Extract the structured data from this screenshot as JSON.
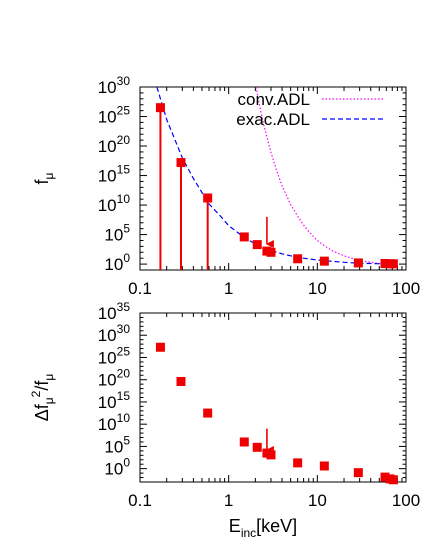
{
  "chart_data": [
    {
      "type": "scatter",
      "panel": "top",
      "ylabel_main": "f",
      "ylabel_sub": "μ",
      "xscale": "log",
      "yscale": "log",
      "xlim": [
        0.1,
        100
      ],
      "ylim_exp": [
        -1,
        30
      ],
      "x_ticks": [
        "0.1",
        "1",
        "10",
        "100"
      ],
      "x_tick_values": [
        0.1,
        1,
        10,
        100
      ],
      "y_tick_base": "10",
      "y_tick_exponents": [
        "0",
        "5",
        "10",
        "15",
        "20",
        "25",
        "30"
      ],
      "legend_position": "top-right",
      "series": [
        {
          "name": "conv.ADL",
          "style": "dotted",
          "color": "#ff00ff",
          "curve": "exponential",
          "x": [
            2.04,
            2.2,
            2.5,
            3,
            3.5,
            4,
            5,
            6,
            7,
            8,
            10,
            12,
            15,
            20,
            30,
            50,
            80
          ],
          "log10_y": [
            30,
            27.3,
            23.4,
            18.9,
            15.7,
            13.3,
            10.1,
            8.1,
            6.6,
            5.5,
            4.0,
            3.1,
            2.2,
            1.4,
            0.6,
            0.1,
            -0.1
          ]
        },
        {
          "name": "exac.ADL",
          "style": "dashed",
          "color": "#0000ff",
          "curve": "exponential",
          "x": [
            0.155,
            0.2,
            0.3,
            0.4,
            0.6,
            0.8,
            1.0,
            1.5,
            2,
            3,
            4,
            5,
            7,
            10,
            15,
            20,
            30,
            50,
            80
          ],
          "log10_y": [
            30,
            24.5,
            18.0,
            14.5,
            10.2,
            8.2,
            6.5,
            4.5,
            3.4,
            2.3,
            1.75,
            1.4,
            1.0,
            0.7,
            0.45,
            0.3,
            0.15,
            0.05,
            0.0
          ]
        },
        {
          "name": "",
          "style": "markers",
          "color": "#ee0000",
          "x": [
            0.17,
            0.29,
            0.58,
            1.5,
            2.1,
            2.7,
            3.0,
            6.0,
            12.0,
            29.0,
            58.0,
            66.0,
            72.0
          ],
          "log10_y": [
            26.5,
            17.2,
            11.2,
            4.6,
            3.3,
            2.2,
            2.0,
            0.9,
            0.5,
            0.2,
            0.1,
            0.05,
            0.05
          ],
          "stems_at_x": [
            0.17,
            0.29,
            0.58
          ]
        }
      ],
      "annotation": {
        "type": "arrow",
        "x": 2.7,
        "log10_y_from": 8.0,
        "log10_y_to": 3.4,
        "color": "#ee0000"
      }
    },
    {
      "type": "scatter",
      "panel": "bottom",
      "ylabel_main": "Δf",
      "ylabel_sub": "μ",
      "ylabel_sup": "2",
      "ylabel_tail": "/f",
      "ylabel_tail_sub": "μ",
      "xlabel_main": "E",
      "xlabel_sub": "inc",
      "xlabel_unit": "[keV]",
      "xscale": "log",
      "yscale": "log",
      "xlim": [
        0.1,
        100
      ],
      "ylim_exp": [
        -3,
        35
      ],
      "x_ticks": [
        "0.1",
        "1",
        "10",
        "100"
      ],
      "x_tick_values": [
        0.1,
        1,
        10,
        100
      ],
      "y_tick_base": "10",
      "y_tick_exponents": [
        "0",
        "5",
        "10",
        "15",
        "20",
        "25",
        "30",
        "35"
      ],
      "series": [
        {
          "name": "",
          "style": "markers",
          "color": "#ee0000",
          "x": [
            0.17,
            0.29,
            0.58,
            1.5,
            2.1,
            2.7,
            3.0,
            6.0,
            12.0,
            29.0,
            58.0,
            66.0,
            72.0
          ],
          "log10_y": [
            27.3,
            19.6,
            12.5,
            6.0,
            4.8,
            3.5,
            3.1,
            1.3,
            0.6,
            -0.9,
            -1.9,
            -2.3,
            -2.5
          ]
        }
      ],
      "annotation": {
        "type": "arrow",
        "x": 2.7,
        "log10_y_from": 9.0,
        "log10_y_to": 4.2,
        "color": "#ee0000"
      }
    }
  ]
}
